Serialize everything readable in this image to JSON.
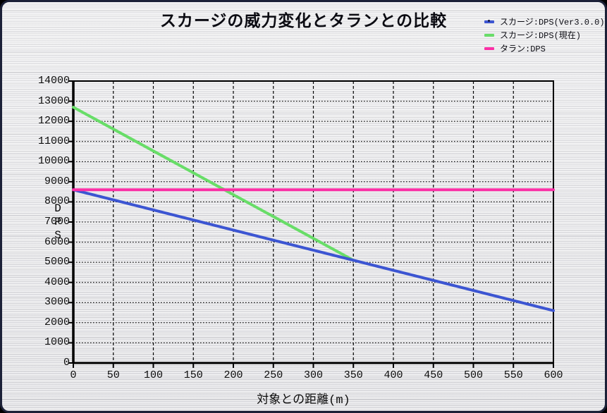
{
  "chart_data": {
    "type": "line",
    "title": "スカージの威力変化とタランとの比較",
    "xlabel": "対象との距離(m)",
    "ylabel": "DPS",
    "xlim": [
      0,
      600
    ],
    "ylim": [
      0,
      14000
    ],
    "xticks": [
      0,
      50,
      100,
      150,
      200,
      250,
      300,
      350,
      400,
      450,
      500,
      550,
      600
    ],
    "yticks": [
      0,
      1000,
      2000,
      3000,
      4000,
      5000,
      6000,
      7000,
      8000,
      9000,
      10000,
      11000,
      12000,
      13000,
      14000
    ],
    "grid": {
      "horizontal": "dotted",
      "vertical": "dashed",
      "color": "#000000",
      "frame": true
    },
    "legend_position": "top-right",
    "background": "brushed-metal",
    "series": [
      {
        "name": "スカージ:DPS(Ver3.0.0)",
        "color": "#3c55d2",
        "points": [
          [
            0,
            8600
          ],
          [
            600,
            2600
          ]
        ],
        "legend_marker_dot": true
      },
      {
        "name": "スカージ:DPS(現在)",
        "color": "#68dd68",
        "points": [
          [
            0,
            12700
          ],
          [
            350,
            5100
          ]
        ]
      },
      {
        "name": "タラン:DPS",
        "color": "#fb2fa6",
        "points": [
          [
            0,
            8600
          ],
          [
            600,
            8600
          ]
        ]
      }
    ],
    "draw_order": [
      1,
      0,
      2
    ]
  }
}
